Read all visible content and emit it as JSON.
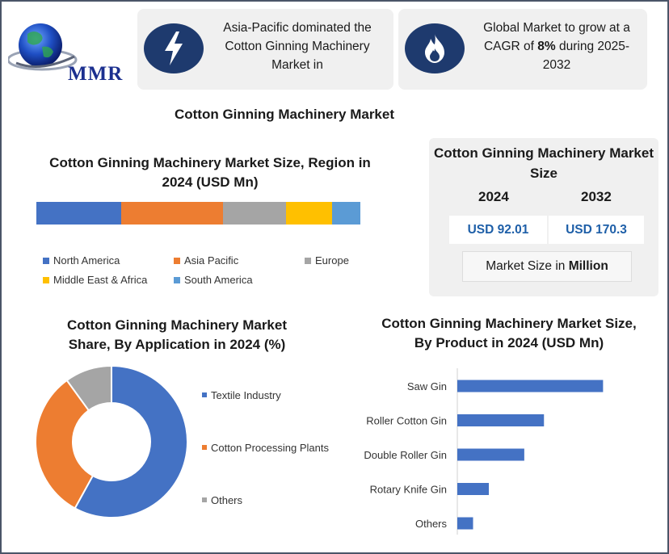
{
  "logo": {
    "text": "MMR"
  },
  "cards": [
    {
      "text": "Asia-Pacific dominated the Cotton Ginning Machinery Market in",
      "icon": "lightning-bolt-icon"
    },
    {
      "text_before": "Global Market to grow at a CAGR of ",
      "highlight": "8%",
      "text_after": " during 2025-2032",
      "icon": "flame-icon"
    }
  ],
  "main_title": "Cotton Ginning Machinery Market",
  "market_size": {
    "title": "Cotton Ginning Machinery Market Size",
    "year_1": "2024",
    "year_2": "2032",
    "value_1": "USD 92.01",
    "value_2": "USD 170.3",
    "unit_prefix": "Market Size in ",
    "unit_bold": "Million"
  },
  "colors": {
    "blue": "#4472C4",
    "orange": "#ED7D31",
    "gray": "#A5A5A5",
    "yellow": "#FFC000",
    "light_blue": "#5B9BD5",
    "navy": "#1e3a6e",
    "value_text": "#1e5fa8"
  },
  "chart_data": [
    {
      "type": "bar",
      "orientation": "horizontal-stacked",
      "title": "Cotton Ginning Machinery Market Size, Region in 2024 (USD Mn)",
      "series": [
        {
          "name": "North America",
          "values": [
            24
          ],
          "color": "#4472C4"
        },
        {
          "name": "Asia Pacific",
          "values": [
            29
          ],
          "color": "#ED7D31"
        },
        {
          "name": "Europe",
          "values": [
            18
          ],
          "color": "#A5A5A5"
        },
        {
          "name": "Middle East & Africa",
          "values": [
            13
          ],
          "color": "#FFC000"
        },
        {
          "name": "South America",
          "values": [
            8
          ],
          "color": "#5B9BD5"
        }
      ],
      "legend": "bottom"
    },
    {
      "type": "pie",
      "subtype": "donut",
      "title": "Cotton Ginning Machinery Market Share, By Application in 2024 (%)",
      "categories": [
        "Textile Industry",
        "Cotton Processing Plants",
        "Others"
      ],
      "values": [
        58,
        32,
        10
      ],
      "colors": [
        "#4472C4",
        "#ED7D31",
        "#A5A5A5"
      ],
      "legend": "right"
    },
    {
      "type": "bar",
      "orientation": "horizontal",
      "title": "Cotton Ginning Machinery Market Size, By Product in 2024 (USD Mn)",
      "categories": [
        "Saw Gin",
        "Roller Cotton Gin",
        "Double Roller Gin",
        "Rotary Knife Gin",
        "Others"
      ],
      "values": [
        37,
        22,
        17,
        8,
        4
      ],
      "xlim": [
        0,
        40
      ],
      "color": "#4472C4"
    }
  ]
}
